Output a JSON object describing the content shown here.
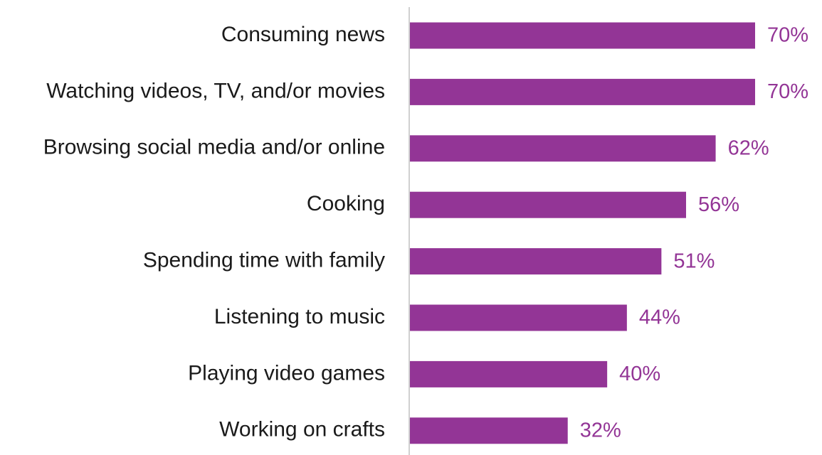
{
  "chart_data": {
    "type": "bar",
    "orientation": "horizontal",
    "categories": [
      "Consuming news",
      "Watching videos, TV, and/or movies",
      "Browsing social media and/or online",
      "Cooking",
      "Spending time with family",
      "Listening to music",
      "Playing video games",
      "Working on crafts"
    ],
    "values": [
      70,
      70,
      62,
      56,
      51,
      44,
      40,
      32
    ],
    "value_labels": [
      "70%",
      "70%",
      "62%",
      "56%",
      "51%",
      "44%",
      "40%",
      "32%"
    ],
    "unit": "%",
    "xlim": [
      0,
      80
    ],
    "grid": false,
    "legend": "none",
    "colors": {
      "bar": "#933596",
      "value_label": "#933596",
      "axis_line": "#d0d0d0",
      "category_label": "#1a1a1a"
    }
  }
}
